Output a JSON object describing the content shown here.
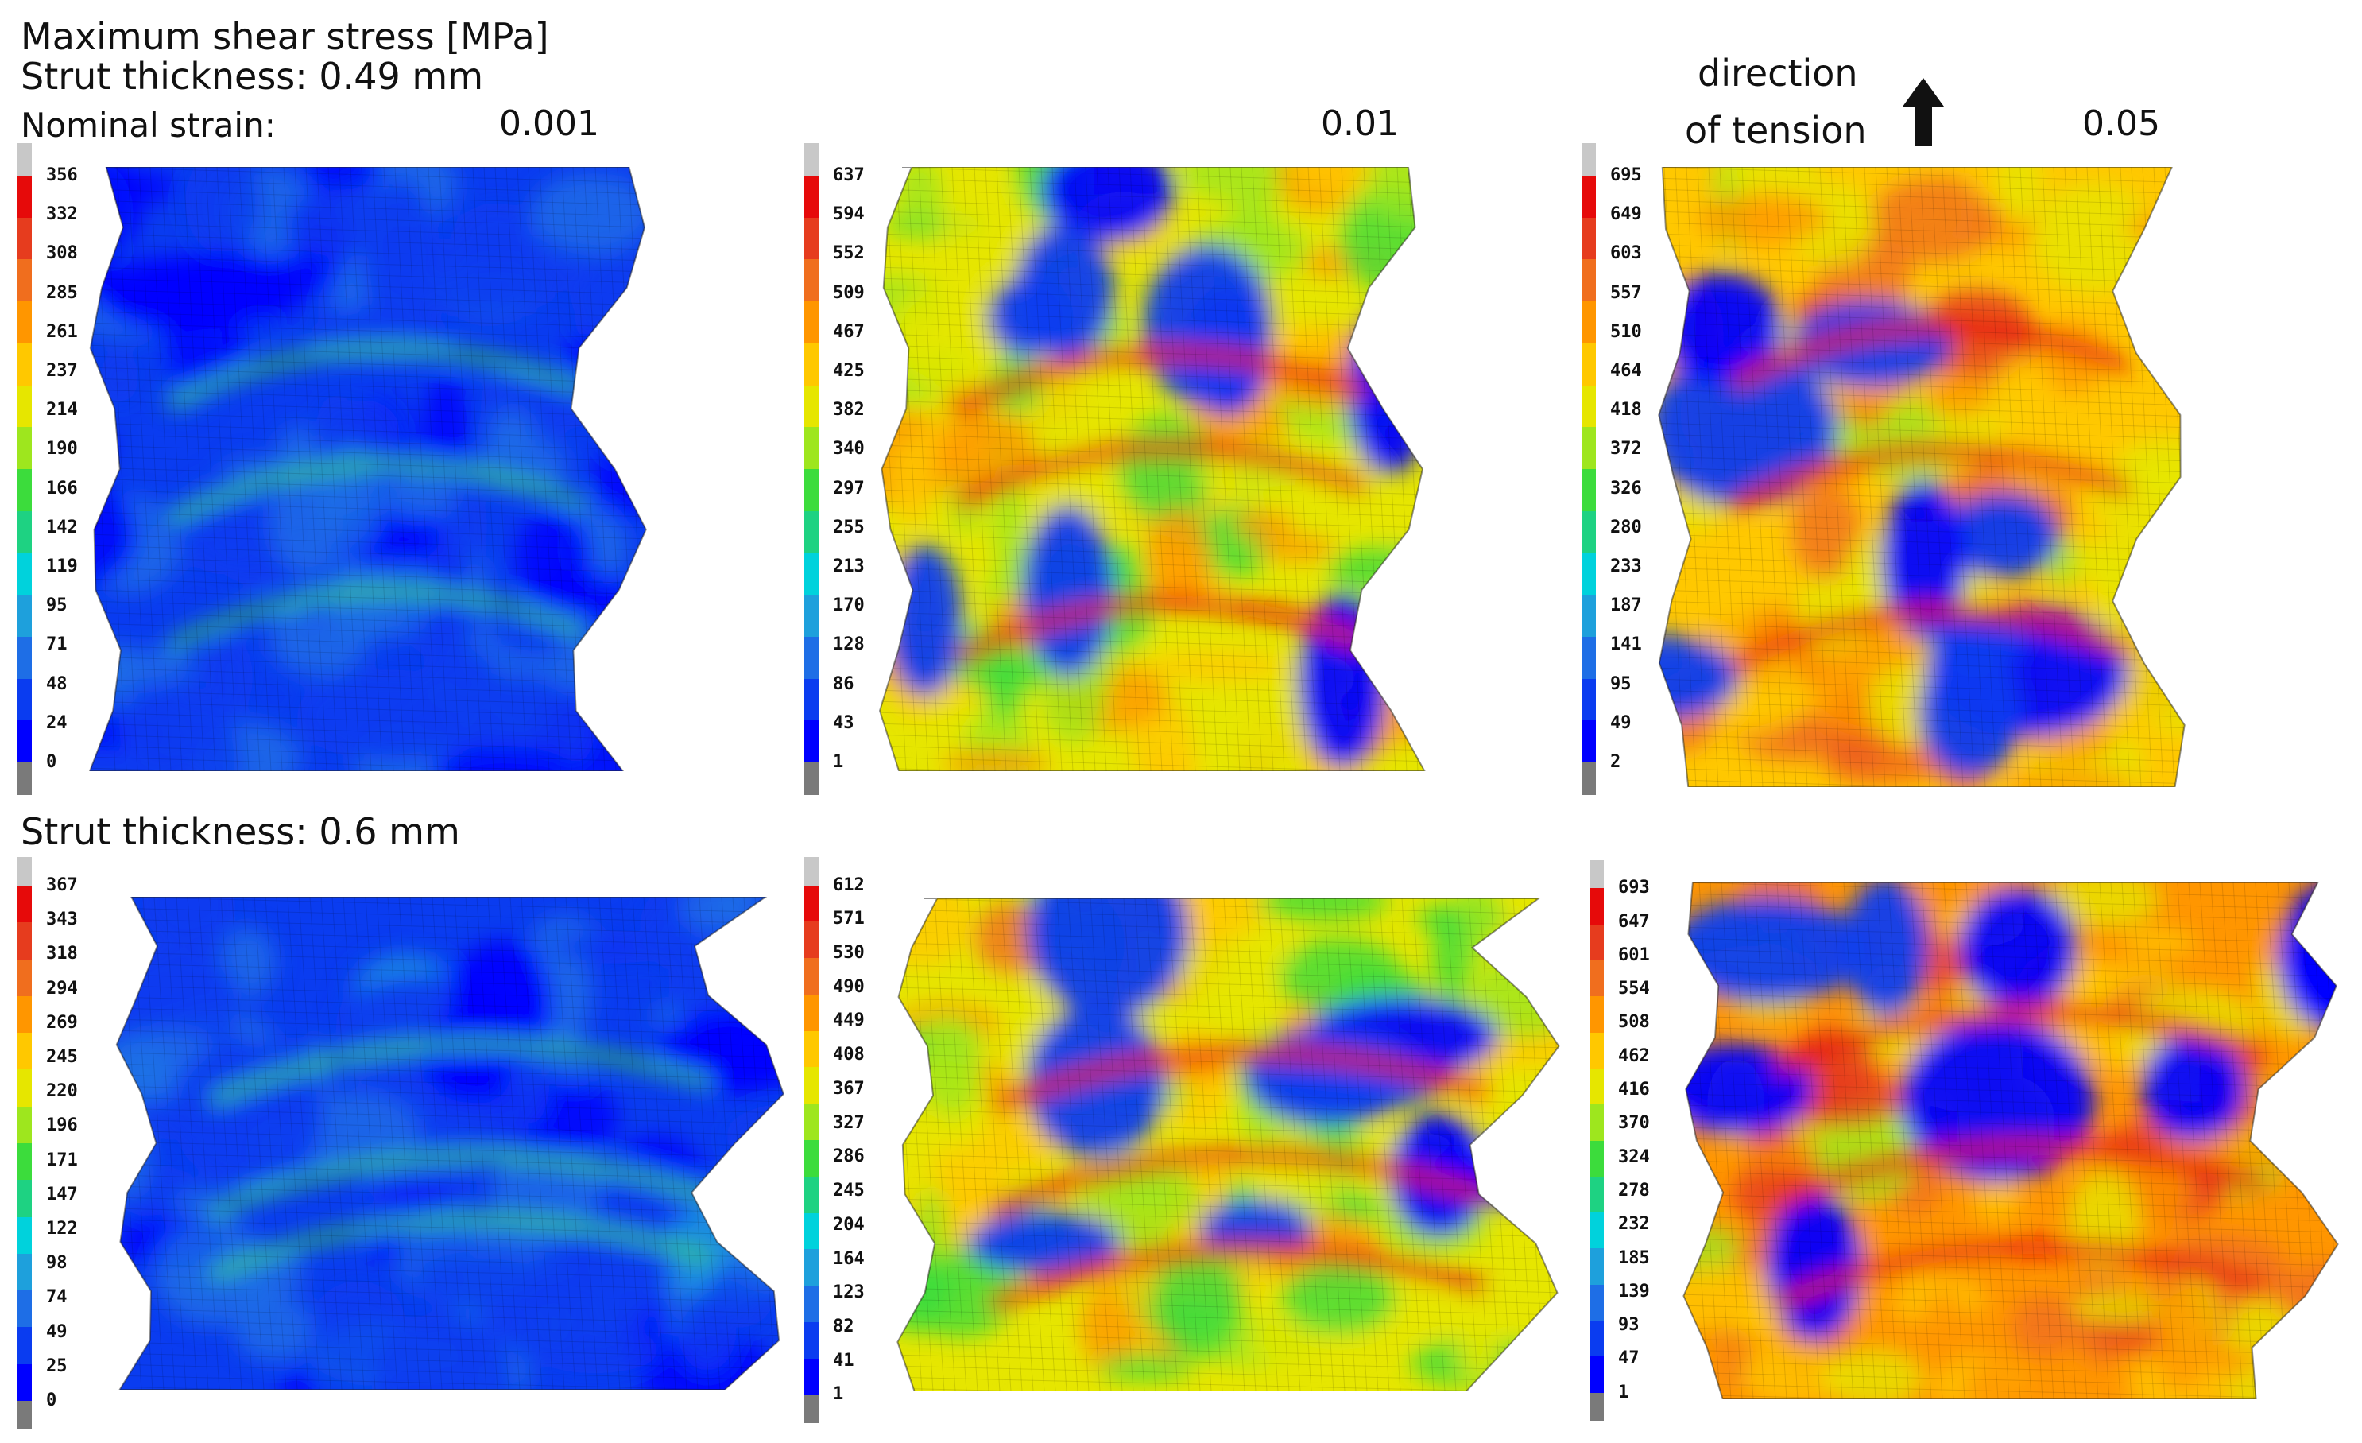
{
  "figure": {
    "title": "Maximum shear stress [MPa]",
    "row1_label": "Strut thickness: 0.49 mm",
    "nominal_strain_label": "Nominal strain:",
    "row2_label": "Strut thickness: 0.6 mm",
    "tension_label_line1": "direction",
    "tension_label_line2": "of tension",
    "strains": [
      "0.001",
      "0.01",
      "0.05"
    ]
  },
  "colors": {
    "top_gray": "#c8c8c8",
    "bottom_gray": "#7a7a7a",
    "scale": [
      "#0000ff",
      "#0a3cf0",
      "#1e6ee6",
      "#1ea0dc",
      "#00d2dc",
      "#1ed282",
      "#3cdc3c",
      "#9ee61e",
      "#e6e600",
      "#ffc800",
      "#ff9600",
      "#f06e1e",
      "#e63c1e",
      "#e60a0a"
    ]
  },
  "panels": [
    {
      "row": 1,
      "col": 1,
      "strain": "0.001",
      "ticks": [
        "356",
        "332",
        "308",
        "285",
        "261",
        "237",
        "214",
        "190",
        "166",
        "142",
        "119",
        "95",
        "71",
        "48",
        "24",
        "0"
      ],
      "stress_level": 0.12
    },
    {
      "row": 1,
      "col": 2,
      "strain": "0.01",
      "ticks": [
        "637",
        "594",
        "552",
        "509",
        "467",
        "425",
        "382",
        "340",
        "297",
        "255",
        "213",
        "170",
        "128",
        "86",
        "43",
        "1"
      ],
      "stress_level": 0.62
    },
    {
      "row": 1,
      "col": 3,
      "strain": "0.05",
      "ticks": [
        "695",
        "649",
        "603",
        "557",
        "510",
        "464",
        "418",
        "372",
        "326",
        "280",
        "233",
        "187",
        "141",
        "95",
        "49",
        "2"
      ],
      "stress_level": 0.7
    },
    {
      "row": 2,
      "col": 1,
      "strain": "0.001",
      "ticks": [
        "367",
        "343",
        "318",
        "294",
        "269",
        "245",
        "220",
        "196",
        "171",
        "147",
        "122",
        "98",
        "74",
        "49",
        "25",
        "0"
      ],
      "stress_level": 0.14
    },
    {
      "row": 2,
      "col": 2,
      "strain": "0.01",
      "ticks": [
        "612",
        "571",
        "530",
        "490",
        "449",
        "408",
        "367",
        "327",
        "286",
        "245",
        "204",
        "164",
        "123",
        "82",
        "41",
        "1"
      ],
      "stress_level": 0.62
    },
    {
      "row": 2,
      "col": 3,
      "strain": "0.05",
      "ticks": [
        "693",
        "647",
        "601",
        "554",
        "508",
        "462",
        "416",
        "370",
        "324",
        "278",
        "232",
        "185",
        "139",
        "93",
        "47",
        "1"
      ],
      "stress_level": 0.72
    }
  ]
}
